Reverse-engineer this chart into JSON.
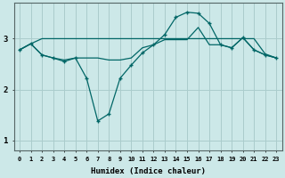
{
  "xlabel": "Humidex (Indice chaleur)",
  "ylabel": "",
  "bg_color": "#cce8e8",
  "grid_color": "#aacccc",
  "line_color": "#006666",
  "x_ticks": [
    0,
    1,
    2,
    3,
    4,
    5,
    6,
    7,
    8,
    9,
    10,
    11,
    12,
    13,
    14,
    15,
    16,
    17,
    18,
    19,
    20,
    21,
    22,
    23
  ],
  "ylim": [
    0.8,
    3.7
  ],
  "yticks": [
    1,
    2,
    3
  ],
  "series": [
    {
      "x": [
        0,
        1,
        2,
        3,
        4,
        5,
        6,
        7,
        8,
        9,
        10,
        11,
        12,
        13,
        14,
        15,
        16,
        17,
        18,
        19,
        20,
        21,
        22,
        23
      ],
      "y": [
        2.78,
        2.9,
        3.0,
        3.0,
        3.0,
        3.0,
        3.0,
        3.0,
        3.0,
        3.0,
        3.0,
        3.0,
        3.0,
        3.0,
        3.0,
        3.0,
        3.0,
        3.0,
        3.0,
        3.0,
        3.0,
        3.0,
        2.7,
        2.62
      ],
      "has_markers": false
    },
    {
      "x": [
        0,
        1,
        2,
        3,
        4,
        5,
        6,
        7,
        8,
        9,
        10,
        11,
        12,
        13,
        14,
        15,
        16,
        17,
        18,
        19,
        20,
        21,
        22,
        23
      ],
      "y": [
        2.78,
        2.9,
        2.68,
        2.62,
        2.55,
        2.62,
        2.22,
        1.38,
        1.52,
        2.22,
        2.48,
        2.72,
        2.88,
        3.08,
        3.42,
        3.52,
        3.5,
        3.3,
        2.88,
        2.82,
        3.02,
        2.78,
        2.68,
        2.62
      ],
      "has_markers": true
    },
    {
      "x": [
        0,
        1,
        2,
        3,
        4,
        5,
        6,
        7,
        8,
        9,
        10,
        11,
        12,
        13,
        14,
        15,
        16,
        17,
        18,
        19,
        20,
        21,
        22,
        23
      ],
      "y": [
        2.78,
        2.9,
        2.68,
        2.62,
        2.58,
        2.62,
        2.62,
        2.62,
        2.58,
        2.58,
        2.62,
        2.82,
        2.88,
        2.98,
        2.98,
        2.98,
        3.22,
        2.88,
        2.88,
        2.82,
        3.02,
        2.78,
        2.68,
        2.62
      ],
      "has_markers": false
    }
  ]
}
